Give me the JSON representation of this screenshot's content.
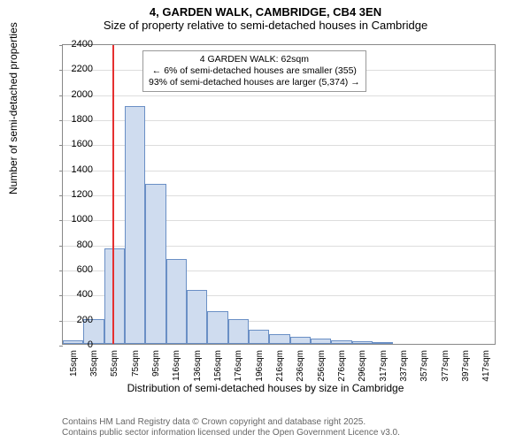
{
  "title_line1": "4, GARDEN WALK, CAMBRIDGE, CB4 3EN",
  "title_line2": "Size of property relative to semi-detached houses in Cambridge",
  "ylabel": "Number of semi-detached properties",
  "xlabel": "Distribution of semi-detached houses by size in Cambridge",
  "chart": {
    "type": "histogram",
    "ylim": [
      0,
      2400
    ],
    "ytick_step": 200,
    "bar_fill": "#cfdcef",
    "bar_border": "#6a8fc5",
    "grid_color": "#dddddd",
    "background": "#ffffff",
    "marker_line_color": "#e53030",
    "marker_x_index": 2.4,
    "bars": [
      {
        "label": "15sqm",
        "value": 30
      },
      {
        "label": "35sqm",
        "value": 200
      },
      {
        "label": "55sqm",
        "value": 760
      },
      {
        "label": "75sqm",
        "value": 1900
      },
      {
        "label": "95sqm",
        "value": 1280
      },
      {
        "label": "116sqm",
        "value": 680
      },
      {
        "label": "136sqm",
        "value": 430
      },
      {
        "label": "156sqm",
        "value": 260
      },
      {
        "label": "176sqm",
        "value": 200
      },
      {
        "label": "196sqm",
        "value": 110
      },
      {
        "label": "216sqm",
        "value": 80
      },
      {
        "label": "236sqm",
        "value": 55
      },
      {
        "label": "256sqm",
        "value": 40
      },
      {
        "label": "276sqm",
        "value": 30
      },
      {
        "label": "296sqm",
        "value": 20
      },
      {
        "label": "317sqm",
        "value": 8
      },
      {
        "label": "337sqm",
        "value": 0
      },
      {
        "label": "357sqm",
        "value": 0
      },
      {
        "label": "377sqm",
        "value": 0
      },
      {
        "label": "397sqm",
        "value": 0
      },
      {
        "label": "417sqm",
        "value": 0
      }
    ]
  },
  "annotation": {
    "line1": "4 GARDEN WALK: 62sqm",
    "line2": "← 6% of semi-detached houses are smaller (355)",
    "line3": "93% of semi-detached houses are larger (5,374) →"
  },
  "footer_line1": "Contains HM Land Registry data © Crown copyright and database right 2025.",
  "footer_line2": "Contains public sector information licensed under the Open Government Licence v3.0."
}
